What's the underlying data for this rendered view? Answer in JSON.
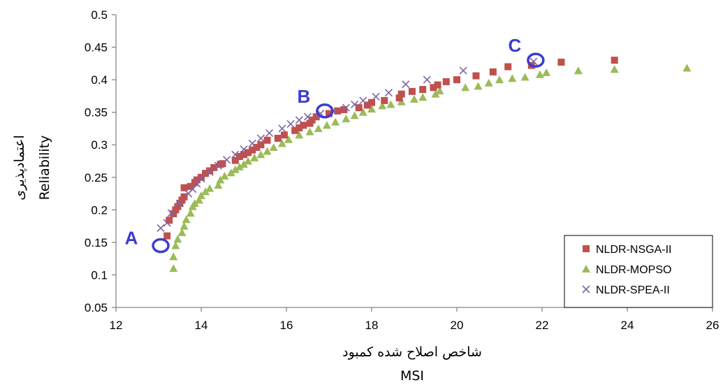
{
  "chart_data": {
    "type": "scatter",
    "xlabel": "MSI",
    "xlabel_alt": "شاخص اصلاح شده کمبود",
    "ylabel": "Reliability",
    "ylabel_alt": "اعتمادپذیری",
    "xlim": [
      12,
      26
    ],
    "ylim": [
      0.05,
      0.5
    ],
    "xticks": [
      "12",
      "14",
      "16",
      "18",
      "20",
      "22",
      "24",
      "26"
    ],
    "yticks": [
      "0.05",
      "0.1",
      "0.15",
      "0.2",
      "0.25",
      "0.3",
      "0.35",
      "0.4",
      "0.45",
      "0.5"
    ],
    "grid": false,
    "legend_position": "bottom-right",
    "series": [
      {
        "name": "NLDR-NSGA-II",
        "marker": "square",
        "color": "#c0504d",
        "points": [
          [
            13.2,
            0.16
          ],
          [
            13.25,
            0.184
          ],
          [
            13.35,
            0.194
          ],
          [
            13.4,
            0.2
          ],
          [
            13.45,
            0.205
          ],
          [
            13.5,
            0.21
          ],
          [
            13.55,
            0.215
          ],
          [
            13.6,
            0.22
          ],
          [
            13.6,
            0.234
          ],
          [
            13.75,
            0.236
          ],
          [
            13.85,
            0.242
          ],
          [
            13.9,
            0.246
          ],
          [
            14.0,
            0.25
          ],
          [
            14.1,
            0.256
          ],
          [
            14.2,
            0.26
          ],
          [
            14.3,
            0.265
          ],
          [
            14.45,
            0.27
          ],
          [
            14.5,
            0.271
          ],
          [
            14.8,
            0.276
          ],
          [
            14.9,
            0.282
          ],
          [
            15.0,
            0.285
          ],
          [
            15.1,
            0.288
          ],
          [
            15.2,
            0.292
          ],
          [
            15.3,
            0.296
          ],
          [
            15.4,
            0.3
          ],
          [
            15.55,
            0.307
          ],
          [
            15.8,
            0.31
          ],
          [
            15.95,
            0.315
          ],
          [
            16.2,
            0.322
          ],
          [
            16.3,
            0.326
          ],
          [
            16.4,
            0.33
          ],
          [
            16.55,
            0.333
          ],
          [
            16.6,
            0.338
          ],
          [
            16.7,
            0.343
          ],
          [
            17.0,
            0.348
          ],
          [
            17.2,
            0.352
          ],
          [
            17.35,
            0.354
          ],
          [
            17.7,
            0.357
          ],
          [
            17.9,
            0.361
          ],
          [
            18.0,
            0.365
          ],
          [
            18.3,
            0.368
          ],
          [
            18.65,
            0.372
          ],
          [
            18.7,
            0.378
          ],
          [
            18.95,
            0.382
          ],
          [
            19.2,
            0.385
          ],
          [
            19.45,
            0.388
          ],
          [
            19.55,
            0.392
          ],
          [
            19.75,
            0.397
          ],
          [
            20.0,
            0.4
          ],
          [
            20.45,
            0.406
          ],
          [
            20.85,
            0.412
          ],
          [
            21.2,
            0.42
          ],
          [
            21.75,
            0.422
          ],
          [
            22.45,
            0.427
          ],
          [
            23.7,
            0.43
          ]
        ]
      },
      {
        "name": "NLDR-MOPSO",
        "marker": "triangle",
        "color": "#9bbb59",
        "points": [
          [
            13.35,
            0.11
          ],
          [
            13.35,
            0.128
          ],
          [
            13.4,
            0.145
          ],
          [
            13.45,
            0.155
          ],
          [
            13.55,
            0.165
          ],
          [
            13.6,
            0.175
          ],
          [
            13.65,
            0.185
          ],
          [
            13.75,
            0.195
          ],
          [
            13.8,
            0.205
          ],
          [
            13.85,
            0.21
          ],
          [
            13.95,
            0.215
          ],
          [
            14.0,
            0.222
          ],
          [
            14.1,
            0.228
          ],
          [
            14.2,
            0.233
          ],
          [
            14.4,
            0.238
          ],
          [
            14.45,
            0.246
          ],
          [
            14.55,
            0.252
          ],
          [
            14.7,
            0.257
          ],
          [
            14.8,
            0.262
          ],
          [
            14.9,
            0.266
          ],
          [
            15.0,
            0.27
          ],
          [
            15.1,
            0.275
          ],
          [
            15.25,
            0.28
          ],
          [
            15.4,
            0.285
          ],
          [
            15.55,
            0.29
          ],
          [
            15.7,
            0.296
          ],
          [
            15.9,
            0.302
          ],
          [
            16.05,
            0.308
          ],
          [
            16.3,
            0.315
          ],
          [
            16.55,
            0.32
          ],
          [
            16.75,
            0.325
          ],
          [
            16.95,
            0.33
          ],
          [
            17.15,
            0.335
          ],
          [
            17.4,
            0.34
          ],
          [
            17.6,
            0.345
          ],
          [
            17.8,
            0.35
          ],
          [
            18.0,
            0.355
          ],
          [
            18.25,
            0.36
          ],
          [
            18.45,
            0.362
          ],
          [
            18.7,
            0.366
          ],
          [
            19.0,
            0.37
          ],
          [
            19.2,
            0.373
          ],
          [
            19.5,
            0.378
          ],
          [
            19.6,
            0.383
          ],
          [
            20.2,
            0.388
          ],
          [
            20.5,
            0.39
          ],
          [
            20.75,
            0.395
          ],
          [
            21.0,
            0.4
          ],
          [
            21.3,
            0.402
          ],
          [
            21.6,
            0.404
          ],
          [
            21.95,
            0.408
          ],
          [
            22.1,
            0.411
          ],
          [
            22.85,
            0.414
          ],
          [
            23.7,
            0.416
          ],
          [
            25.4,
            0.418
          ]
        ]
      },
      {
        "name": "NLDR-SPEA-II",
        "marker": "x",
        "color": "#8064a2",
        "points": [
          [
            13.05,
            0.172
          ],
          [
            13.2,
            0.18
          ],
          [
            13.3,
            0.195
          ],
          [
            13.5,
            0.21
          ],
          [
            13.7,
            0.225
          ],
          [
            13.8,
            0.232
          ],
          [
            13.9,
            0.24
          ],
          [
            14.0,
            0.248
          ],
          [
            14.2,
            0.258
          ],
          [
            14.4,
            0.268
          ],
          [
            14.6,
            0.277
          ],
          [
            14.8,
            0.285
          ],
          [
            15.0,
            0.293
          ],
          [
            15.2,
            0.302
          ],
          [
            15.4,
            0.31
          ],
          [
            15.6,
            0.318
          ],
          [
            15.9,
            0.325
          ],
          [
            16.1,
            0.332
          ],
          [
            16.3,
            0.338
          ],
          [
            16.5,
            0.343
          ],
          [
            16.8,
            0.348
          ],
          [
            17.1,
            0.352
          ],
          [
            17.4,
            0.357
          ],
          [
            17.6,
            0.362
          ],
          [
            17.8,
            0.368
          ],
          [
            18.1,
            0.374
          ],
          [
            18.4,
            0.38
          ],
          [
            18.8,
            0.393
          ],
          [
            19.3,
            0.4
          ],
          [
            20.15,
            0.414
          ],
          [
            21.8,
            0.428
          ]
        ]
      }
    ],
    "annotations": [
      {
        "label": "A",
        "x": 13.05,
        "y": 0.145
      },
      {
        "label": "B",
        "x": 16.9,
        "y": 0.352
      },
      {
        "label": "C",
        "x": 21.85,
        "y": 0.43
      }
    ],
    "colors": {
      "annotation": "#3b3bd1",
      "axis": "#868686"
    }
  }
}
